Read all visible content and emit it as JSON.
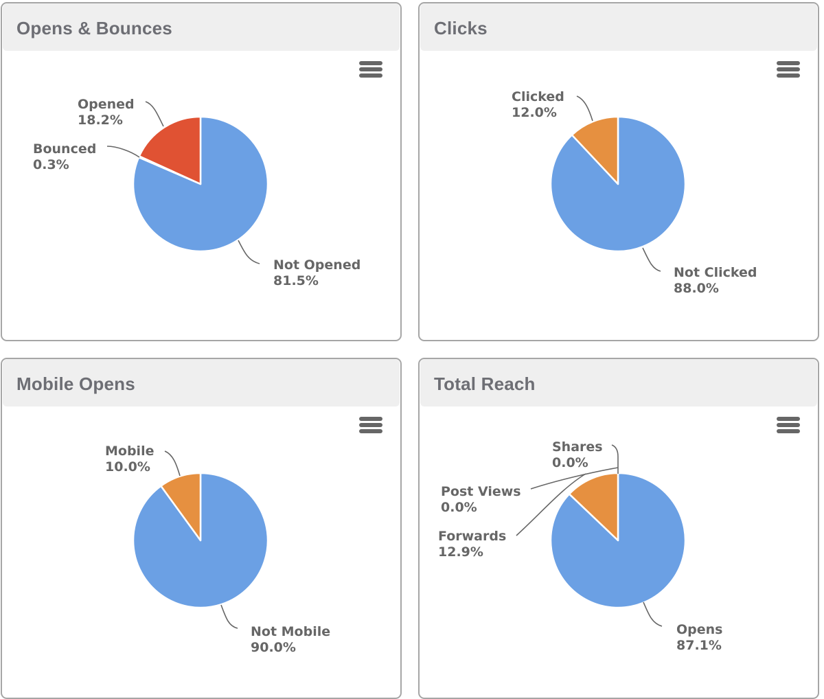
{
  "colors": {
    "blue": "#6ba0e4",
    "red": "#e05233",
    "orange": "#e69040",
    "label": "#666666",
    "title": "#6d6e74",
    "header_bg": "#efefef",
    "border": "#a6a6a6"
  },
  "icons": {
    "menu": "hamburger-menu-icon"
  },
  "chart_data": [
    {
      "type": "pie",
      "title": "Opens & Bounces",
      "slices": [
        {
          "name": "Not Opened",
          "value": 81.5,
          "label": "81.5%",
          "color": "#6ba0e4"
        },
        {
          "name": "Bounced",
          "value": 0.3,
          "label": "0.3%",
          "color": "#6ba0e4"
        },
        {
          "name": "Opened",
          "value": 18.2,
          "label": "18.2%",
          "color": "#e05233"
        }
      ]
    },
    {
      "type": "pie",
      "title": "Clicks",
      "slices": [
        {
          "name": "Not Clicked",
          "value": 88.0,
          "label": "88.0%",
          "color": "#6ba0e4"
        },
        {
          "name": "Clicked",
          "value": 12.0,
          "label": "12.0%",
          "color": "#e69040"
        }
      ]
    },
    {
      "type": "pie",
      "title": "Mobile Opens",
      "slices": [
        {
          "name": "Not Mobile",
          "value": 90.0,
          "label": "90.0%",
          "color": "#6ba0e4"
        },
        {
          "name": "Mobile",
          "value": 10.0,
          "label": "10.0%",
          "color": "#e69040"
        }
      ]
    },
    {
      "type": "pie",
      "title": "Total Reach",
      "slices": [
        {
          "name": "Opens",
          "value": 87.1,
          "label": "87.1%",
          "color": "#6ba0e4"
        },
        {
          "name": "Forwards",
          "value": 12.9,
          "label": "12.9%",
          "color": "#e69040"
        },
        {
          "name": "Post Views",
          "value": 0.0,
          "label": "0.0%",
          "color": "#e05233"
        },
        {
          "name": "Shares",
          "value": 0.0,
          "label": "0.0%",
          "color": "#6ba0e4"
        }
      ]
    }
  ]
}
